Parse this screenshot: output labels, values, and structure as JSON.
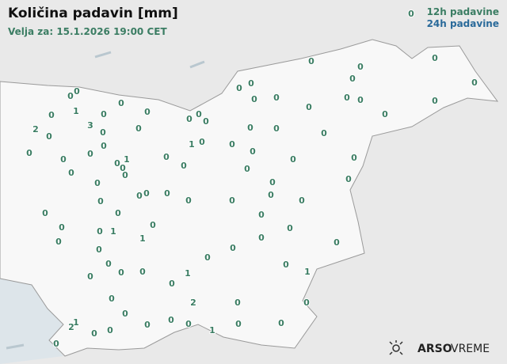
{
  "header": {
    "title": "Količina padavin [mm]",
    "subtitle": "Velja za: 15.1.2026 19:00 CET"
  },
  "legend": {
    "items": [
      "12h padavine",
      "24h padavine"
    ]
  },
  "logo": {
    "bold": "ARSO",
    "regular": "VREME"
  },
  "stations": [
    0,
    0,
    0,
    0,
    0,
    0,
    0,
    0,
    0,
    0,
    0,
    0,
    0,
    0,
    0,
    0,
    0,
    1,
    0,
    0,
    0,
    0,
    0,
    0,
    0,
    3,
    2,
    0,
    0,
    0,
    0,
    0,
    0,
    1,
    0,
    0,
    0,
    0,
    0,
    0,
    0,
    0,
    1,
    0,
    0,
    0,
    0,
    0,
    0,
    0,
    0,
    0,
    0,
    0,
    0,
    0,
    0,
    0,
    0,
    0,
    0,
    0,
    0,
    0,
    0,
    0,
    0,
    0,
    0,
    1,
    1,
    0,
    0,
    0,
    0,
    0,
    0,
    0,
    0,
    0,
    1,
    0,
    1,
    0,
    0,
    0,
    2,
    0,
    0,
    0,
    0,
    1,
    2,
    0,
    0,
    0,
    0,
    0,
    0,
    1,
    0,
    1,
    0
  ]
}
